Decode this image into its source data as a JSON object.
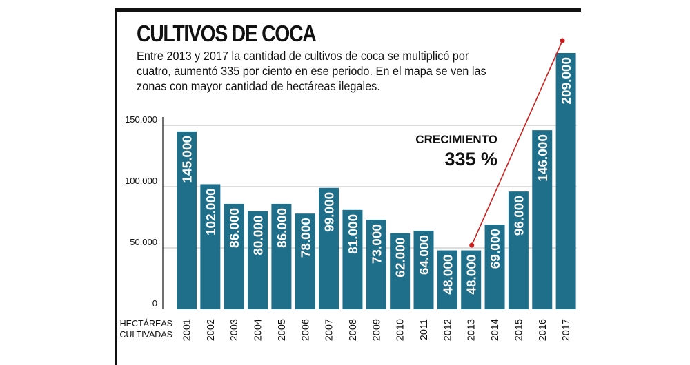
{
  "chart_data": {
    "type": "bar",
    "title": "CULTIVOS DE COCA",
    "subtitle": "Entre 2013 y 2017 la cantidad de cultivos de coca se multiplicó por cuatro, aumentó 335 por ciento en ese periodo. En el mapa se ven las zonas con mayor cantidad de hectáreas ilegales.",
    "xlabel": "HECTÁREAS CULTIVADAS",
    "ylabel": "",
    "ylim": [
      0,
      150000
    ],
    "y_ticks": [
      {
        "value": 0,
        "label": "0"
      },
      {
        "value": 50000,
        "label": "50.000"
      },
      {
        "value": 100000,
        "label": "100.000"
      },
      {
        "value": 150000,
        "label": "150.000"
      }
    ],
    "categories": [
      "2001",
      "2002",
      "2003",
      "2004",
      "2005",
      "2006",
      "2007",
      "2008",
      "2009",
      "2010",
      "2011",
      "2012",
      "2013",
      "2014",
      "2015",
      "2016",
      "2017"
    ],
    "values": [
      145000,
      102000,
      86000,
      80000,
      86000,
      78000,
      99000,
      81000,
      73000,
      62000,
      64000,
      48000,
      48000,
      69000,
      96000,
      146000,
      209000
    ],
    "value_labels": [
      "145.000",
      "102.000",
      "86.000",
      "80.000",
      "86.000",
      "78.000",
      "99.000",
      "81.000",
      "73.000",
      "62.000",
      "64.000",
      "48.000",
      "48.000",
      "69.000",
      "96.000",
      "146.000",
      "209.000"
    ],
    "annotation": {
      "label": "CRECIMIENTO",
      "value": "335 %",
      "from": "2013",
      "to": "2017"
    },
    "colors": {
      "bar": "#1f6f8b",
      "bar_text": "#ffffff",
      "accent": "#cc1f1f",
      "grid": "#bbbbbb",
      "axis": "#111111"
    }
  }
}
